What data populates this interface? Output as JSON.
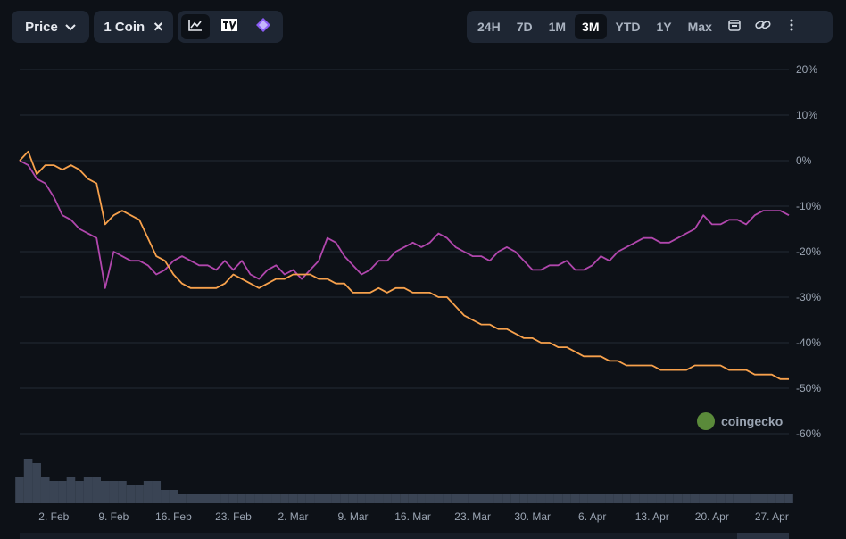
{
  "toolbar": {
    "price_label": "Price",
    "coin_label": "1 Coin",
    "close_glyph": "×",
    "chart_types": [
      {
        "icon": "line-chart-icon",
        "active": true
      },
      {
        "icon": "tradingview-icon",
        "active": false
      },
      {
        "icon": "gem-icon",
        "active": false
      }
    ],
    "ranges": [
      "24H",
      "7D",
      "1M",
      "3M",
      "YTD",
      "1Y",
      "Max"
    ],
    "active_range": "3M",
    "extra_icons": [
      "calendar-icon",
      "link-icon",
      "more-icon"
    ]
  },
  "watermark": "coingecko",
  "colors": {
    "background": "#0d1117",
    "grid": "#232a35",
    "series_purple": "#b147ad",
    "series_orange": "#f7a14c",
    "volume": "#3a4454"
  },
  "chart_data": {
    "type": "line",
    "title": "",
    "xlabel": "",
    "ylabel": "",
    "x_tick_labels": [
      "2. Feb",
      "9. Feb",
      "16. Feb",
      "23. Feb",
      "2. Mar",
      "9. Mar",
      "16. Mar",
      "23. Mar",
      "30. Mar",
      "6. Apr",
      "13. Apr",
      "20. Apr",
      "27. Apr"
    ],
    "y_tick_labels": [
      "20%",
      "10%",
      "0%",
      "-10%",
      "-20%",
      "-30%",
      "-40%",
      "-50%",
      "-60%"
    ],
    "ylim": [
      -60,
      20
    ],
    "y_unit": "%",
    "x_domain_days": [
      0,
      90
    ],
    "grid": true,
    "legend": "none",
    "series": [
      {
        "color": "#b147ad",
        "x": [
          0,
          1,
          2,
          3,
          4,
          5,
          6,
          7,
          8,
          9,
          10,
          11,
          12,
          13,
          14,
          15,
          16,
          17,
          18,
          19,
          20,
          21,
          22,
          23,
          24,
          25,
          26,
          27,
          28,
          29,
          30,
          31,
          32,
          33,
          34,
          35,
          36,
          37,
          38,
          39,
          40,
          41,
          42,
          43,
          44,
          45,
          46,
          47,
          48,
          49,
          50,
          51,
          52,
          53,
          54,
          55,
          56,
          57,
          58,
          59,
          60,
          61,
          62,
          63,
          64,
          65,
          66,
          67,
          68,
          69,
          70,
          71,
          72,
          73,
          74,
          75,
          76,
          77,
          78,
          79,
          80,
          81,
          82,
          83,
          84,
          85,
          86,
          87,
          88,
          89,
          90
        ],
        "values": [
          0,
          -1,
          -4,
          -5,
          -8,
          -12,
          -13,
          -15,
          -16,
          -17,
          -28,
          -20,
          -21,
          -22,
          -22,
          -23,
          -25,
          -24,
          -22,
          -21,
          -22,
          -23,
          -23,
          -24,
          -22,
          -24,
          -22,
          -25,
          -26,
          -24,
          -23,
          -25,
          -24,
          -26,
          -24,
          -22,
          -17,
          -18,
          -21,
          -23,
          -25,
          -24,
          -22,
          -22,
          -20,
          -19,
          -18,
          -19,
          -18,
          -16,
          -17,
          -19,
          -20,
          -21,
          -21,
          -22,
          -20,
          -19,
          -20,
          -22,
          -24,
          -24,
          -23,
          -23,
          -22,
          -24,
          -24,
          -23,
          -21,
          -22,
          -20,
          -19,
          -18,
          -17,
          -17,
          -18,
          -18,
          -17,
          -16,
          -15,
          -12,
          -14,
          -14,
          -13,
          -13,
          -14,
          -12,
          -11,
          -11,
          -11,
          -12
        ]
      },
      {
        "color": "#f7a14c",
        "x": [
          0,
          1,
          2,
          3,
          4,
          5,
          6,
          7,
          8,
          9,
          10,
          11,
          12,
          13,
          14,
          15,
          16,
          17,
          18,
          19,
          20,
          21,
          22,
          23,
          24,
          25,
          26,
          27,
          28,
          29,
          30,
          31,
          32,
          33,
          34,
          35,
          36,
          37,
          38,
          39,
          40,
          41,
          42,
          43,
          44,
          45,
          46,
          47,
          48,
          49,
          50,
          51,
          52,
          53,
          54,
          55,
          56,
          57,
          58,
          59,
          60,
          61,
          62,
          63,
          64,
          65,
          66,
          67,
          68,
          69,
          70,
          71,
          72,
          73,
          74,
          75,
          76,
          77,
          78,
          79,
          80,
          81,
          82,
          83,
          84,
          85,
          86,
          87,
          88,
          89,
          90
        ],
        "values": [
          0,
          2,
          -3,
          -1,
          -1,
          -2,
          -1,
          -2,
          -4,
          -5,
          -14,
          -12,
          -11,
          -12,
          -13,
          -17,
          -21,
          -22,
          -25,
          -27,
          -28,
          -28,
          -28,
          -28,
          -27,
          -25,
          -26,
          -27,
          -28,
          -27,
          -26,
          -26,
          -25,
          -25,
          -25,
          -26,
          -26,
          -27,
          -27,
          -29,
          -29,
          -29,
          -28,
          -29,
          -28,
          -28,
          -29,
          -29,
          -29,
          -30,
          -30,
          -32,
          -34,
          -35,
          -36,
          -36,
          -37,
          -37,
          -38,
          -39,
          -39,
          -40,
          -40,
          -41,
          -41,
          -42,
          -43,
          -43,
          -43,
          -44,
          -44,
          -45,
          -45,
          -45,
          -45,
          -46,
          -46,
          -46,
          -46,
          -45,
          -45,
          -45,
          -45,
          -46,
          -46,
          -46,
          -47,
          -47,
          -47,
          -48,
          -48
        ]
      }
    ],
    "volume": [
      6,
      10,
      9,
      6,
      5,
      5,
      6,
      5,
      6,
      6,
      5,
      5,
      5,
      4,
      4,
      5,
      5,
      3,
      3,
      2,
      2,
      2,
      2,
      2,
      2,
      2,
      2,
      2,
      2,
      2,
      2,
      2,
      2,
      2,
      2,
      2,
      2,
      2,
      2,
      2,
      2,
      2,
      2,
      2,
      2,
      2,
      2,
      2,
      2,
      2,
      2,
      2,
      2,
      2,
      2,
      2,
      2,
      2,
      2,
      2,
      2,
      2,
      2,
      2,
      2,
      2,
      2,
      2,
      2,
      2,
      2,
      2,
      2,
      2,
      2,
      2,
      2,
      2,
      2,
      2,
      2,
      2,
      2,
      2,
      2,
      2,
      2,
      2,
      2,
      2,
      2
    ]
  }
}
